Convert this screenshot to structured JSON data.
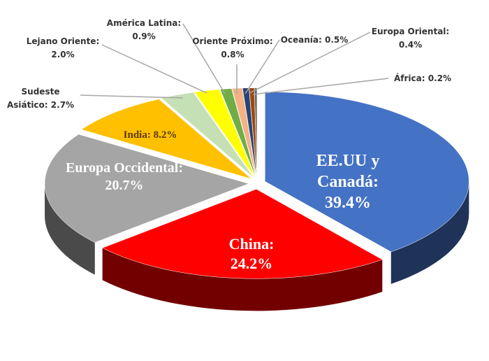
{
  "chart_data": {
    "type": "pie",
    "categories": [
      "EE.UU y Canadá:",
      "China:",
      "Europa Occidental:",
      "India:",
      "Sudeste Asiático:",
      "Lejano Oriente:",
      "América Latina:",
      "Oriente Próximo:",
      "Oceanía:",
      "Europa Oriental:",
      "África:"
    ],
    "values": [
      39.4,
      24.2,
      20.7,
      8.2,
      2.7,
      2.0,
      0.9,
      0.8,
      0.5,
      0.4,
      0.2
    ],
    "value_labels": [
      "39.4%",
      "24.2%",
      "20.7%",
      "8.2%",
      "2.7%",
      "2.0%",
      "0.9%",
      "0.8%",
      "0.5%",
      "0.4%",
      "0.2%"
    ],
    "colors": [
      "#4472c4",
      "#ff0000",
      "#a5a5a5",
      "#ffc000",
      "#c5e0b4",
      "#ffff00",
      "#70ad47",
      "#f4b183",
      "#264478",
      "#9e480e",
      "#636363"
    ]
  }
}
